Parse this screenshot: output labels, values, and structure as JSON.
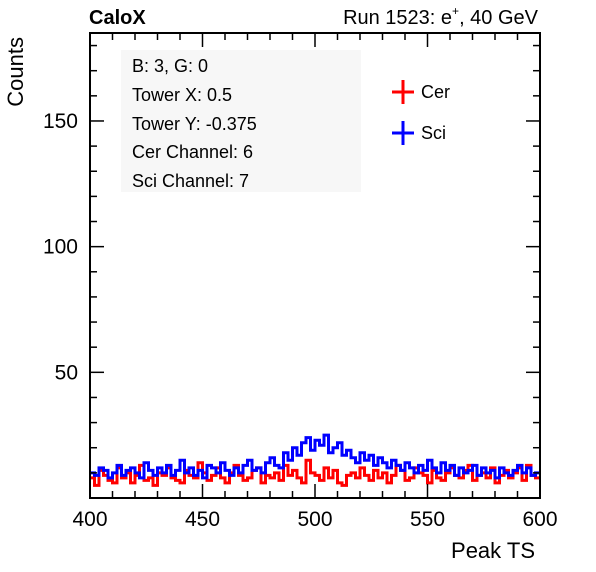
{
  "header": {
    "title_left": "CaloX",
    "run_prefix": "Run 1523: e",
    "run_sup": "+",
    "run_suffix": ", 40 GeV"
  },
  "info_box": {
    "lines": [
      "B: 3, G: 0",
      "Tower X: 0.5",
      "Tower Y: -0.375",
      "Cer Channel: 6",
      "Sci Channel: 7"
    ]
  },
  "chart_data": {
    "type": "line",
    "xlabel": "Peak TS",
    "ylabel": "Counts",
    "xlim": [
      400,
      600
    ],
    "ylim": [
      0,
      185
    ],
    "x_ticks": [
      400,
      450,
      500,
      550,
      600
    ],
    "y_ticks": [
      50,
      100,
      150
    ],
    "bin_width": 2,
    "legend": {
      "placement": "top-right"
    },
    "series": [
      {
        "name": "Cer",
        "color": "#ff0000",
        "values": [
          8,
          5,
          11,
          9,
          7,
          6,
          12,
          8,
          10,
          6,
          9,
          13,
          7,
          8,
          5,
          10,
          9,
          12,
          8,
          7,
          6,
          11,
          9,
          8,
          14,
          10,
          7,
          9,
          12,
          8,
          6,
          10,
          13,
          9,
          7,
          8,
          11,
          12,
          6,
          9,
          8,
          10,
          7,
          13,
          9,
          11,
          8,
          6,
          15,
          10,
          9,
          7,
          12,
          8,
          11,
          6,
          5,
          9,
          10,
          8,
          12,
          9,
          7,
          11,
          8,
          10,
          6,
          9,
          13,
          11,
          7,
          8,
          12,
          10,
          9,
          6,
          11,
          8,
          7,
          10,
          12,
          9,
          8,
          11,
          13,
          7,
          9,
          10,
          8,
          12,
          6,
          9,
          11,
          8,
          10,
          12,
          7,
          13,
          9,
          8
        ]
      },
      {
        "name": "Sci",
        "color": "#0000ff",
        "values": [
          10,
          9,
          12,
          11,
          8,
          10,
          13,
          9,
          11,
          12,
          10,
          8,
          14,
          11,
          9,
          12,
          10,
          13,
          9,
          11,
          15,
          10,
          12,
          9,
          11,
          8,
          13,
          12,
          10,
          14,
          11,
          9,
          12,
          10,
          13,
          15,
          11,
          12,
          10,
          14,
          16,
          13,
          12,
          18,
          15,
          20,
          17,
          22,
          24,
          19,
          23,
          21,
          25,
          18,
          20,
          22,
          17,
          19,
          16,
          14,
          18,
          15,
          17,
          13,
          16,
          14,
          12,
          15,
          13,
          11,
          14,
          12,
          10,
          13,
          11,
          15,
          12,
          10,
          14,
          11,
          13,
          9,
          12,
          10,
          11,
          13,
          9,
          12,
          10,
          11,
          8,
          12,
          10,
          9,
          11,
          13,
          10,
          12,
          9,
          10
        ]
      }
    ]
  }
}
